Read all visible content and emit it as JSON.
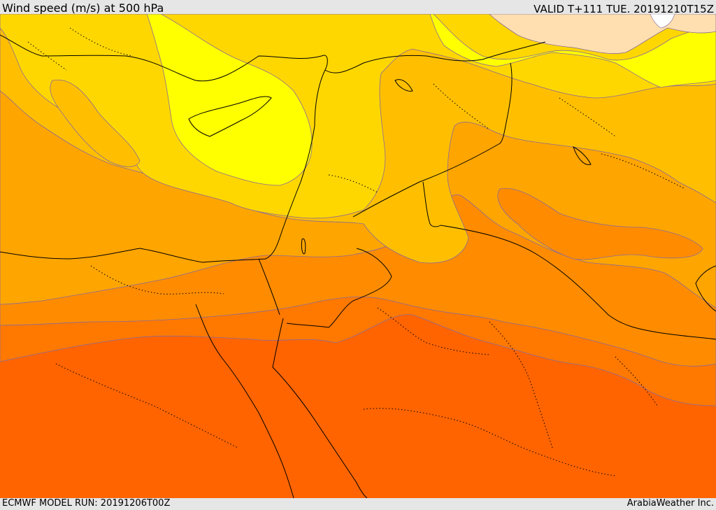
{
  "header": {
    "title": "Wind speed (m/s) at 500 hPa",
    "valid": "VALID T+111 TUE. 20191210T15Z"
  },
  "footer": {
    "model_run": "ECMWF MODEL RUN: 20191206T00Z",
    "credit": "ArabiaWeather Inc."
  },
  "map": {
    "field": "wind speed",
    "colors": {
      "lightest": "#ffdfaf",
      "yellow": "#ffff00",
      "gold": "#ffd700",
      "amber": "#ffbf00",
      "orange_light": "#ffa500",
      "orange": "#ff8c00",
      "orange_dark": "#ff7800",
      "red_orange": "#ff6400"
    }
  }
}
